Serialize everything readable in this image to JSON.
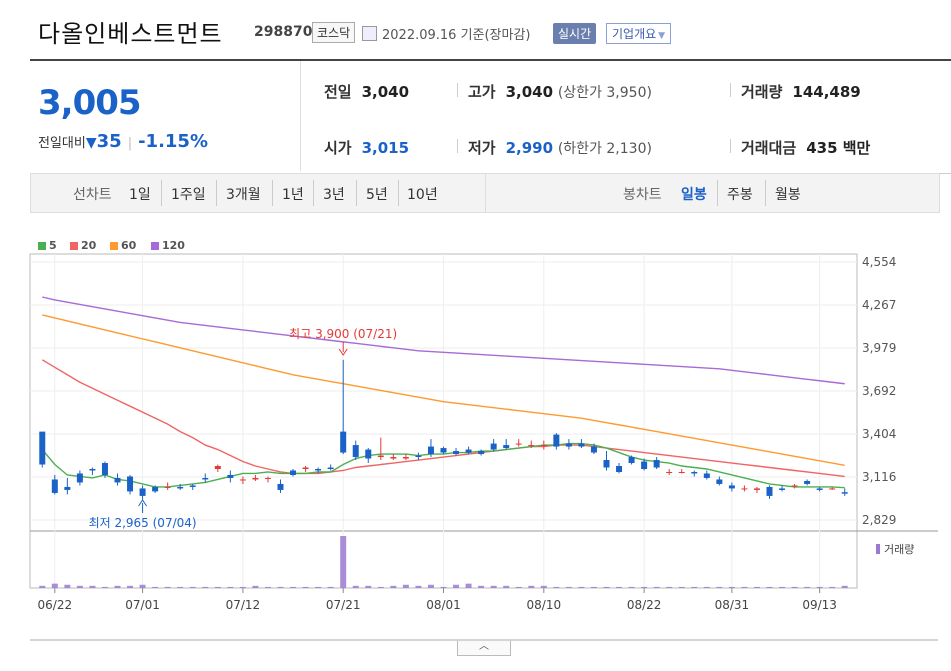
{
  "header": {
    "name": "다올인베스트먼트",
    "code": "298870",
    "market": "코스닥",
    "date": "2022.09.16 기준(장마감)",
    "realtime_label": "실시간",
    "company_label": "기업개요"
  },
  "quote": {
    "price": "3,005",
    "change_label": "전일대비",
    "change": "35",
    "change_pct": "-1.15%",
    "prev_label": "전일",
    "prev": "3,040",
    "high_label": "고가",
    "high": "3,040",
    "upper_limit": "(상한가 3,950)",
    "volume_label": "거래량",
    "volume": "144,489",
    "open_label": "시가",
    "open": "3,015",
    "low_label": "저가",
    "low": "2,990",
    "lower_limit": "(하한가 2,130)",
    "amount_label": "거래대금",
    "amount": "435 백만"
  },
  "tabs": {
    "line_label": "선차트",
    "periods": [
      "1일",
      "1주일",
      "3개월",
      "1년",
      "3년",
      "5년",
      "10년"
    ],
    "candle_label": "봉차트",
    "candles": [
      "일봉",
      "주봉",
      "월봉"
    ]
  },
  "colors": {
    "up": "#e53935",
    "down": "#1b62c8",
    "ma5": "#4caf50",
    "ma20": "#f06464",
    "ma60": "#ff9a2e",
    "ma120": "#a86ad6",
    "volume": "#9a7ad0"
  },
  "chart_data": {
    "type": "candlestick",
    "legend": [
      "5",
      "20",
      "60",
      "120"
    ],
    "y_ticks": [
      "4,554",
      "4,267",
      "3,979",
      "3,692",
      "3,404",
      "3,116",
      "2,829"
    ],
    "ylim": [
      2829,
      4554
    ],
    "x_ticks": [
      "06/22",
      "07/01",
      "07/12",
      "07/21",
      "08/01",
      "08/10",
      "08/22",
      "08/31",
      "09/13"
    ],
    "high_annotation": "최고 3,900 (07/21)",
    "low_annotation": "최저 2,965 (07/04)",
    "volume_label": "거래량",
    "candles": [
      [
        3420,
        3370,
        3200,
        3180
      ],
      [
        3100,
        3130,
        3010,
        3000
      ],
      [
        3050,
        3110,
        3030,
        3000
      ],
      [
        3140,
        3160,
        3080,
        3060
      ],
      [
        3170,
        3180,
        3160,
        3130
      ],
      [
        3210,
        3220,
        3130,
        3110
      ],
      [
        3110,
        3140,
        3080,
        3060
      ],
      [
        3120,
        3130,
        3020,
        3000
      ],
      [
        3040,
        3060,
        2990,
        2965
      ],
      [
        3050,
        3060,
        3020,
        3010
      ],
      [
        3050,
        3080,
        3050,
        3030
      ],
      [
        3050,
        3070,
        3040,
        3030
      ],
      [
        3060,
        3070,
        3050,
        3030
      ],
      [
        3110,
        3140,
        3100,
        3080
      ],
      [
        3170,
        3200,
        3190,
        3150
      ],
      [
        3130,
        3160,
        3110,
        3080
      ],
      [
        3100,
        3120,
        3100,
        3070
      ],
      [
        3100,
        3130,
        3110,
        3090
      ],
      [
        3110,
        3120,
        3110,
        3080
      ],
      [
        3070,
        3100,
        3030,
        3010
      ],
      [
        3160,
        3170,
        3130,
        3120
      ],
      [
        3170,
        3190,
        3180,
        3150
      ],
      [
        3170,
        3180,
        3160,
        3140
      ],
      [
        3180,
        3200,
        3170,
        3160
      ],
      [
        3420,
        3900,
        3280,
        3270
      ],
      [
        3330,
        3360,
        3250,
        3230
      ],
      [
        3300,
        3310,
        3240,
        3210
      ],
      [
        3250,
        3380,
        3260,
        3230
      ],
      [
        3240,
        3270,
        3250,
        3230
      ],
      [
        3240,
        3270,
        3250,
        3230
      ],
      [
        3260,
        3280,
        3250,
        3230
      ],
      [
        3320,
        3370,
        3270,
        3250
      ],
      [
        3310,
        3320,
        3280,
        3270
      ],
      [
        3290,
        3310,
        3270,
        3260
      ],
      [
        3300,
        3320,
        3280,
        3270
      ],
      [
        3290,
        3300,
        3270,
        3260
      ],
      [
        3340,
        3370,
        3300,
        3290
      ],
      [
        3330,
        3370,
        3310,
        3300
      ],
      [
        3340,
        3370,
        3340,
        3320
      ],
      [
        3330,
        3360,
        3330,
        3310
      ],
      [
        3330,
        3360,
        3330,
        3300
      ],
      [
        3400,
        3410,
        3320,
        3300
      ],
      [
        3340,
        3370,
        3320,
        3300
      ],
      [
        3340,
        3370,
        3320,
        3310
      ],
      [
        3320,
        3340,
        3280,
        3270
      ],
      [
        3230,
        3290,
        3180,
        3160
      ],
      [
        3190,
        3210,
        3150,
        3140
      ],
      [
        3250,
        3260,
        3210,
        3200
      ],
      [
        3220,
        3240,
        3170,
        3160
      ],
      [
        3230,
        3250,
        3180,
        3170
      ],
      [
        3150,
        3170,
        3150,
        3130
      ],
      [
        3150,
        3170,
        3150,
        3140
      ],
      [
        3150,
        3160,
        3140,
        3120
      ],
      [
        3140,
        3160,
        3110,
        3100
      ],
      [
        3100,
        3120,
        3070,
        3060
      ],
      [
        3060,
        3080,
        3040,
        3020
      ],
      [
        3040,
        3060,
        3040,
        3020
      ],
      [
        3030,
        3050,
        3040,
        3010
      ],
      [
        3050,
        3060,
        2990,
        2970
      ],
      [
        3040,
        3060,
        3030,
        3020
      ],
      [
        3060,
        3070,
        3060,
        3040
      ],
      [
        3090,
        3100,
        3070,
        3060
      ],
      [
        3040,
        3050,
        3030,
        3020
      ],
      [
        3040,
        3050,
        3040,
        3030
      ],
      [
        3015,
        3040,
        3005,
        2990
      ]
    ],
    "ma5": [
      3300,
      3200,
      3130,
      3120,
      3110,
      3130,
      3100,
      3090,
      3070,
      3050,
      3050,
      3060,
      3070,
      3080,
      3100,
      3120,
      3140,
      3140,
      3150,
      3140,
      3140,
      3140,
      3150,
      3150,
      3200,
      3240,
      3260,
      3270,
      3270,
      3270,
      3260,
      3270,
      3270,
      3280,
      3280,
      3290,
      3290,
      3300,
      3310,
      3320,
      3330,
      3330,
      3340,
      3340,
      3330,
      3310,
      3280,
      3250,
      3230,
      3220,
      3210,
      3190,
      3180,
      3170,
      3150,
      3130,
      3110,
      3090,
      3070,
      3060,
      3050,
      3050,
      3050,
      3050,
      3045
    ],
    "ma20": [
      3900,
      3850,
      3800,
      3750,
      3710,
      3670,
      3630,
      3590,
      3550,
      3510,
      3470,
      3420,
      3380,
      3330,
      3300,
      3260,
      3220,
      3190,
      3170,
      3150,
      3140,
      3140,
      3140,
      3150,
      3160,
      3180,
      3190,
      3200,
      3210,
      3220,
      3230,
      3240,
      3250,
      3260,
      3270,
      3280,
      3290,
      3300,
      3310,
      3320,
      3320,
      3330,
      3330,
      3330,
      3320,
      3310,
      3300,
      3290,
      3280,
      3270,
      3260,
      3250,
      3240,
      3230,
      3220,
      3210,
      3200,
      3190,
      3180,
      3170,
      3160,
      3150,
      3140,
      3130,
      3120
    ],
    "ma60": [
      4200,
      4180,
      4160,
      4140,
      4120,
      4100,
      4080,
      4060,
      4040,
      4020,
      4000,
      3980,
      3960,
      3940,
      3920,
      3900,
      3880,
      3860,
      3840,
      3820,
      3800,
      3785,
      3770,
      3755,
      3740,
      3725,
      3710,
      3695,
      3680,
      3665,
      3650,
      3635,
      3620,
      3610,
      3600,
      3590,
      3580,
      3570,
      3560,
      3550,
      3540,
      3530,
      3520,
      3510,
      3495,
      3480,
      3465,
      3450,
      3435,
      3420,
      3405,
      3390,
      3375,
      3360,
      3345,
      3330,
      3315,
      3300,
      3285,
      3270,
      3255,
      3240,
      3225,
      3210,
      3195
    ],
    "ma120": [
      4320,
      4300,
      4285,
      4270,
      4255,
      4240,
      4225,
      4210,
      4195,
      4180,
      4165,
      4150,
      4140,
      4130,
      4120,
      4110,
      4100,
      4090,
      4080,
      4070,
      4060,
      4050,
      4040,
      4030,
      4020,
      4010,
      4000,
      3990,
      3980,
      3970,
      3960,
      3955,
      3950,
      3945,
      3940,
      3935,
      3930,
      3925,
      3920,
      3915,
      3910,
      3905,
      3900,
      3895,
      3890,
      3885,
      3880,
      3875,
      3870,
      3865,
      3860,
      3855,
      3850,
      3845,
      3840,
      3830,
      3820,
      3810,
      3800,
      3790,
      3780,
      3770,
      3760,
      3750,
      3740
    ],
    "volume": [
      2,
      4,
      3,
      2,
      2,
      1,
      2,
      2,
      3,
      1,
      1,
      1,
      1,
      1,
      1,
      1,
      1,
      2,
      1,
      1,
      1,
      1,
      1,
      1,
      48,
      2,
      2,
      1,
      2,
      3,
      2,
      3,
      1,
      3,
      4,
      2,
      2,
      2,
      1,
      2,
      2,
      1,
      1,
      1,
      1,
      1,
      1,
      1,
      1,
      1,
      1,
      1,
      1,
      1,
      1,
      1,
      1,
      1,
      1,
      1,
      1,
      1,
      1,
      1,
      2
    ]
  }
}
